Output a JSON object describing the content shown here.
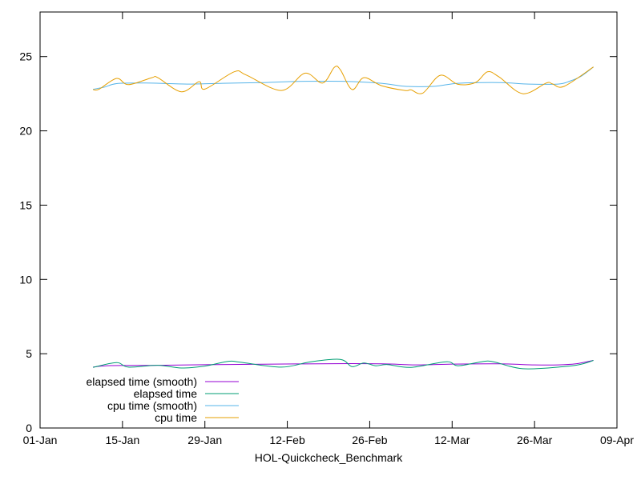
{
  "chart_data": {
    "type": "line",
    "title": "",
    "xlabel": "HOL-Quickcheck_Benchmark",
    "ylabel": "",
    "xlim": [
      "01-01",
      "04-09"
    ],
    "ylim": [
      0,
      28
    ],
    "grid": false,
    "legend_position": "bottom-left",
    "x_ticks": [
      "01-Jan",
      "15-Jan",
      "29-Jan",
      "12-Feb",
      "26-Feb",
      "12-Mar",
      "26-Mar",
      "09-Apr"
    ],
    "x_tick_dates": [
      "01-01",
      "01-15",
      "01-29",
      "02-12",
      "02-26",
      "03-12",
      "03-26",
      "04-09"
    ],
    "y_ticks": [
      0,
      5,
      10,
      15,
      20,
      25
    ],
    "series": [
      {
        "name": "elapsed time (smooth)",
        "color": "#9400d3",
        "x": [
          "01-10",
          "01-13",
          "01-21",
          "01-31",
          "02-10",
          "02-20",
          "02-28",
          "03-06",
          "03-12",
          "03-20",
          "03-26",
          "03-30",
          "04-02",
          "04-05"
        ],
        "y": [
          4.1,
          4.2,
          4.22,
          4.27,
          4.3,
          4.33,
          4.32,
          4.25,
          4.3,
          4.32,
          4.25,
          4.25,
          4.32,
          4.55
        ]
      },
      {
        "name": "elapsed time",
        "color": "#009e73",
        "x": [
          "01-10",
          "01-14",
          "01-16",
          "01-21",
          "01-25",
          "01-29",
          "02-02",
          "02-04",
          "02-11",
          "02-16",
          "02-21",
          "02-23",
          "02-25",
          "02-27",
          "03-01",
          "03-05",
          "03-11",
          "03-13",
          "03-17",
          "03-19",
          "03-24",
          "03-31",
          "04-03",
          "04-05"
        ],
        "y": [
          4.08,
          4.4,
          4.1,
          4.22,
          4.04,
          4.17,
          4.49,
          4.43,
          4.1,
          4.46,
          4.62,
          4.13,
          4.38,
          4.19,
          4.27,
          4.08,
          4.46,
          4.19,
          4.46,
          4.46,
          3.99,
          4.13,
          4.3,
          4.55
        ]
      },
      {
        "name": "cpu time (smooth)",
        "color": "#56b4e9",
        "x": [
          "01-10",
          "01-12",
          "01-14",
          "01-19",
          "01-26",
          "02-01",
          "02-08",
          "02-14",
          "02-22",
          "02-28",
          "03-04",
          "03-09",
          "03-13",
          "03-20",
          "03-25",
          "03-30",
          "04-01",
          "04-03",
          "04-05"
        ],
        "y": [
          22.8,
          22.95,
          23.18,
          23.22,
          23.15,
          23.2,
          23.25,
          23.33,
          23.33,
          23.2,
          23.0,
          23.0,
          23.2,
          23.25,
          23.15,
          23.15,
          23.35,
          23.7,
          24.3
        ]
      },
      {
        "name": "cpu time",
        "color": "#e69f00",
        "x": [
          "01-10",
          "01-11",
          "01-14",
          "01-16",
          "01-20",
          "01-21",
          "01-25",
          "01-28",
          "01-29",
          "02-03",
          "02-05",
          "02-11",
          "02-15",
          "02-18",
          "02-20",
          "02-21",
          "02-23",
          "02-25",
          "02-28",
          "03-04",
          "03-05",
          "03-07",
          "03-10",
          "03-13",
          "03-16",
          "03-18",
          "03-20",
          "03-24",
          "03-28",
          "03-29",
          "03-31",
          "04-05"
        ],
        "y": [
          22.78,
          22.8,
          23.53,
          23.11,
          23.58,
          23.58,
          22.63,
          23.31,
          22.81,
          23.98,
          23.76,
          22.72,
          23.88,
          23.22,
          24.28,
          24.12,
          22.78,
          23.58,
          23.04,
          22.72,
          22.76,
          22.54,
          23.74,
          23.13,
          23.26,
          23.98,
          23.62,
          22.5,
          23.22,
          23.17,
          22.99,
          24.3
        ]
      }
    ]
  }
}
